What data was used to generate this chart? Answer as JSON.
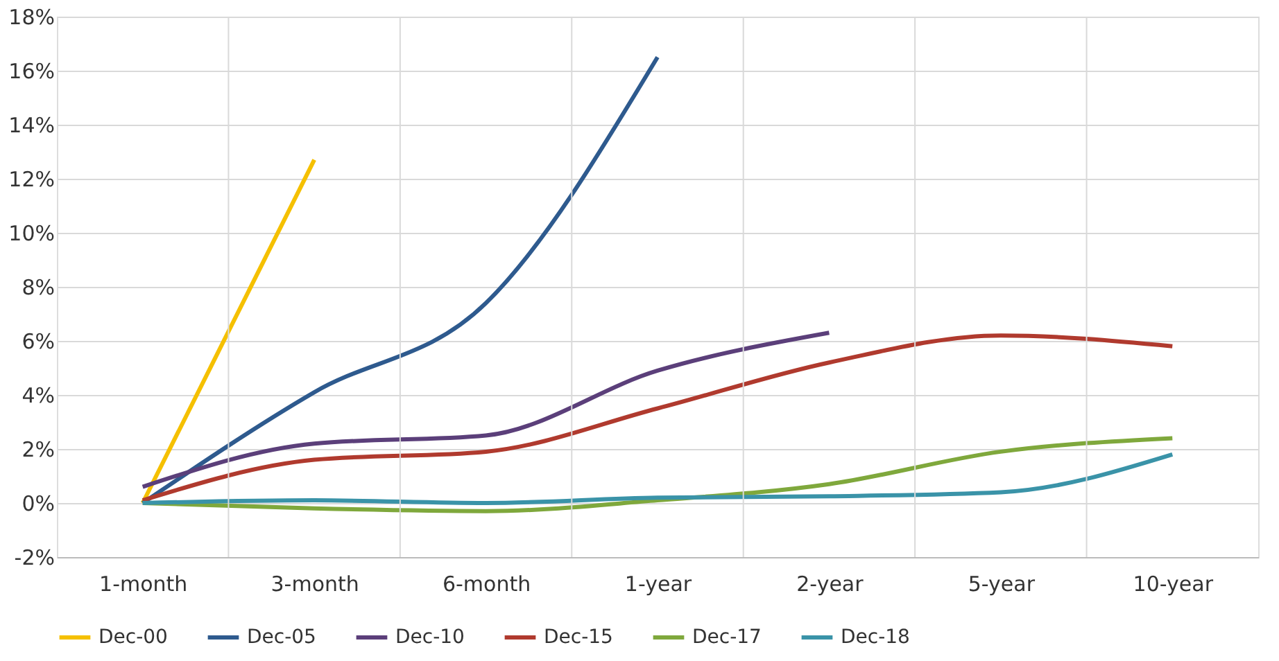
{
  "chart_data": {
    "type": "line",
    "categories": [
      "1-month",
      "3-month",
      "6-month",
      "1-year",
      "2-year",
      "5-year",
      "10-year"
    ],
    "series": [
      {
        "name": "Dec-00",
        "color": "#f5c000",
        "values": [
          0,
          12.7,
          null,
          null,
          null,
          null,
          null
        ]
      },
      {
        "name": "Dec-05",
        "color": "#2e5a8e",
        "values": [
          0,
          4.1,
          7.4,
          16.5,
          null,
          null,
          null
        ]
      },
      {
        "name": "Dec-10",
        "color": "#5b3f7a",
        "values": [
          0.6,
          2.2,
          2.5,
          4.9,
          6.3,
          null,
          null
        ]
      },
      {
        "name": "Dec-15",
        "color": "#b03a2e",
        "values": [
          0.1,
          1.6,
          1.9,
          3.5,
          5.2,
          6.2,
          5.8
        ]
      },
      {
        "name": "Dec-17",
        "color": "#7fa83c",
        "values": [
          0,
          -0.2,
          -0.3,
          0.1,
          0.7,
          1.9,
          2.4
        ]
      },
      {
        "name": "Dec-18",
        "color": "#3a93a8",
        "values": [
          0,
          0.1,
          0,
          0.2,
          0.25,
          0.4,
          1.8
        ]
      }
    ],
    "ylim": [
      -2,
      18
    ],
    "yticks": [
      {
        "value": -2,
        "label": "-2%"
      },
      {
        "value": 0,
        "label": "0%"
      },
      {
        "value": 2,
        "label": "2%"
      },
      {
        "value": 4,
        "label": "4%"
      },
      {
        "value": 6,
        "label": "6%"
      },
      {
        "value": 8,
        "label": "8%"
      },
      {
        "value": 10,
        "label": "10%"
      },
      {
        "value": 12,
        "label": "12%"
      },
      {
        "value": 14,
        "label": "14%"
      },
      {
        "value": 16,
        "label": "16%"
      },
      {
        "value": 18,
        "label": "18%"
      }
    ],
    "grid": true,
    "legend": "bottom"
  }
}
